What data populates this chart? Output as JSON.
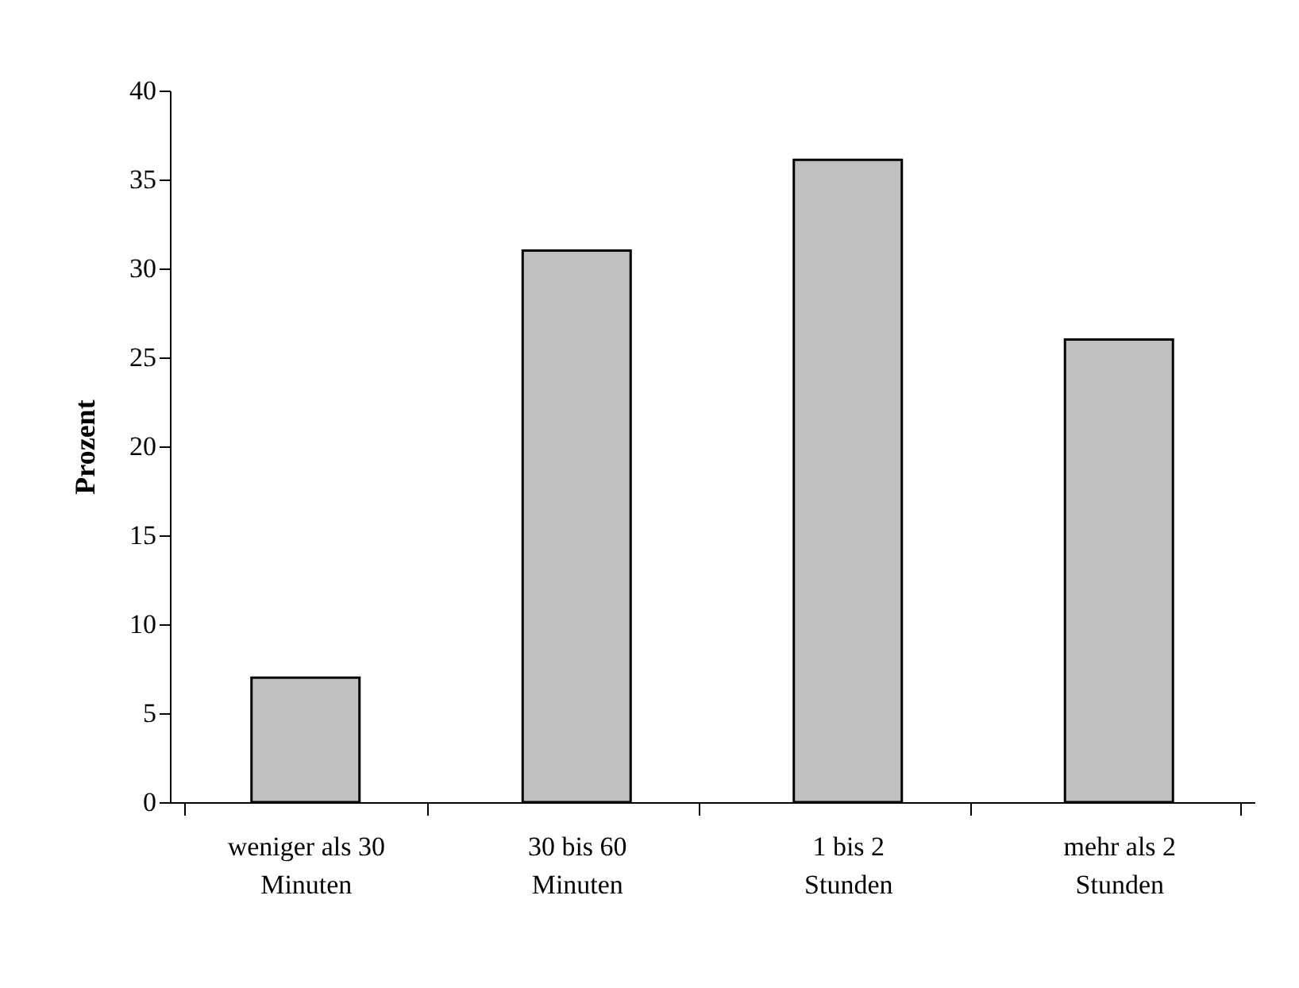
{
  "chart_data": {
    "type": "bar",
    "ylabel": "Prozent",
    "categories": [
      "weniger als 30\nMinuten",
      "30 bis 60\nMinuten",
      "1 bis 2\nStunden",
      "mehr als 2\nStunden"
    ],
    "values": [
      7,
      31,
      36.1,
      26
    ],
    "color": "#c0c0c0",
    "ylim": [
      0,
      40
    ],
    "yticks": [
      0,
      5,
      10,
      15,
      20,
      25,
      30,
      35,
      40
    ],
    "grid": false
  }
}
